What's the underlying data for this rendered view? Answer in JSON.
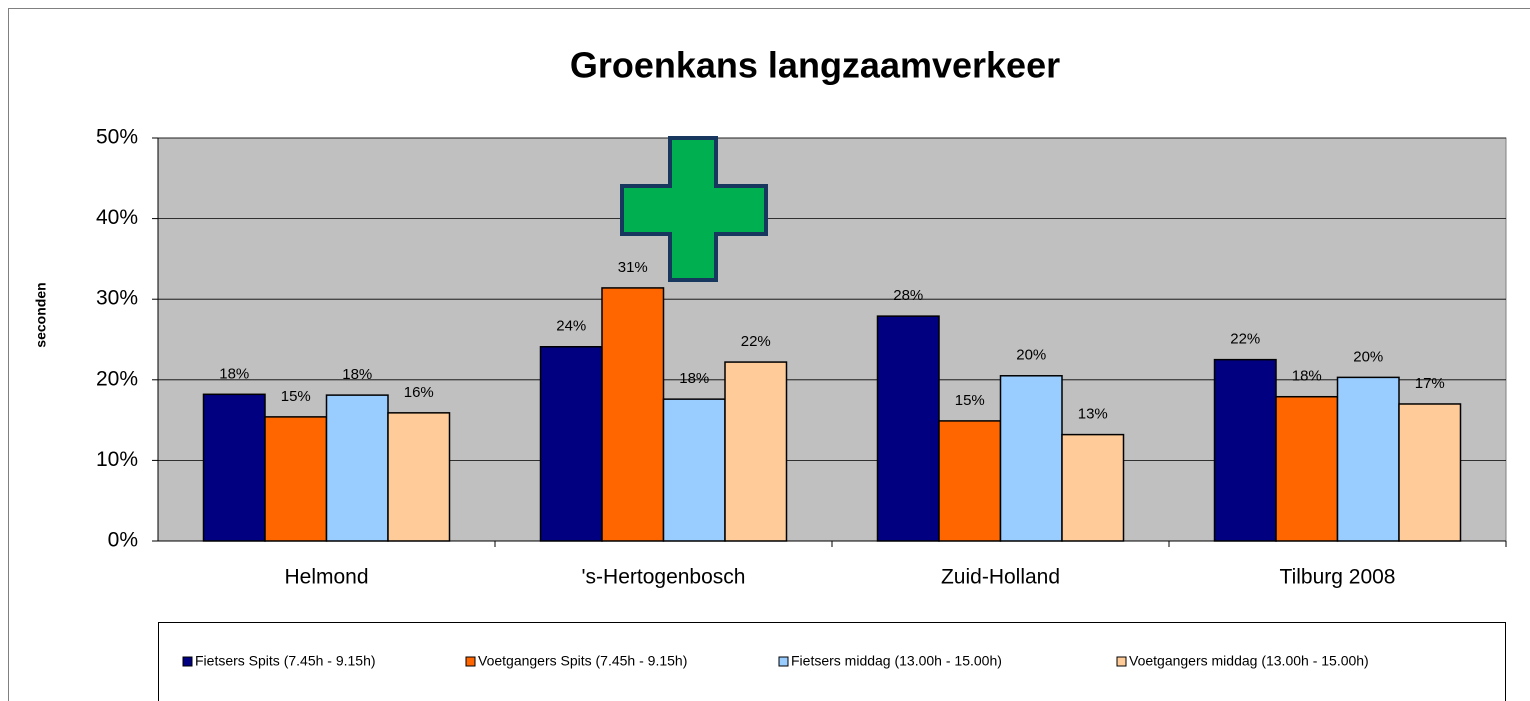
{
  "chart_data": {
    "type": "bar",
    "title": "Groenkans langzaamverkeer",
    "y_label": "seconden",
    "categories": [
      "Helmond",
      "'s-Hertogenbosch",
      "Zuid-Holland",
      "Tilburg 2008"
    ],
    "series": [
      {
        "name": "Fietsers Spits (7.45h - 9.15h)",
        "color": "#000080",
        "values": [
          18.2,
          24.1,
          27.9,
          22.5
        ],
        "value_labels": [
          "18%",
          "24%",
          "28%",
          "22%"
        ]
      },
      {
        "name": "Voetgangers Spits (7.45h - 9.15h)",
        "color": "#ff6600",
        "values": [
          15.4,
          31.4,
          14.9,
          17.9
        ],
        "value_labels": [
          "15%",
          "31%",
          "15%",
          "18%"
        ]
      },
      {
        "name": "Fietsers middag (13.00h - 15.00h)",
        "color": "#99ccff",
        "values": [
          18.1,
          17.6,
          20.5,
          20.3
        ],
        "value_labels": [
          "18%",
          "18%",
          "20%",
          "20%"
        ]
      },
      {
        "name": "Voetgangers middag (13.00h - 15.00h)",
        "color": "#ffcc99",
        "values": [
          15.9,
          22.2,
          13.2,
          17.0
        ],
        "value_labels": [
          "16%",
          "22%",
          "13%",
          "17%"
        ]
      }
    ],
    "ylim": [
      0,
      50
    ],
    "yticks": [
      {
        "value": 0,
        "label": "0%"
      },
      {
        "value": 10,
        "label": "10%"
      },
      {
        "value": 20,
        "label": "20%"
      },
      {
        "value": 30,
        "label": "30%"
      },
      {
        "value": 40,
        "label": "40%"
      },
      {
        "value": 50,
        "label": "50%"
      }
    ],
    "grid": true,
    "legend": "bottom"
  }
}
